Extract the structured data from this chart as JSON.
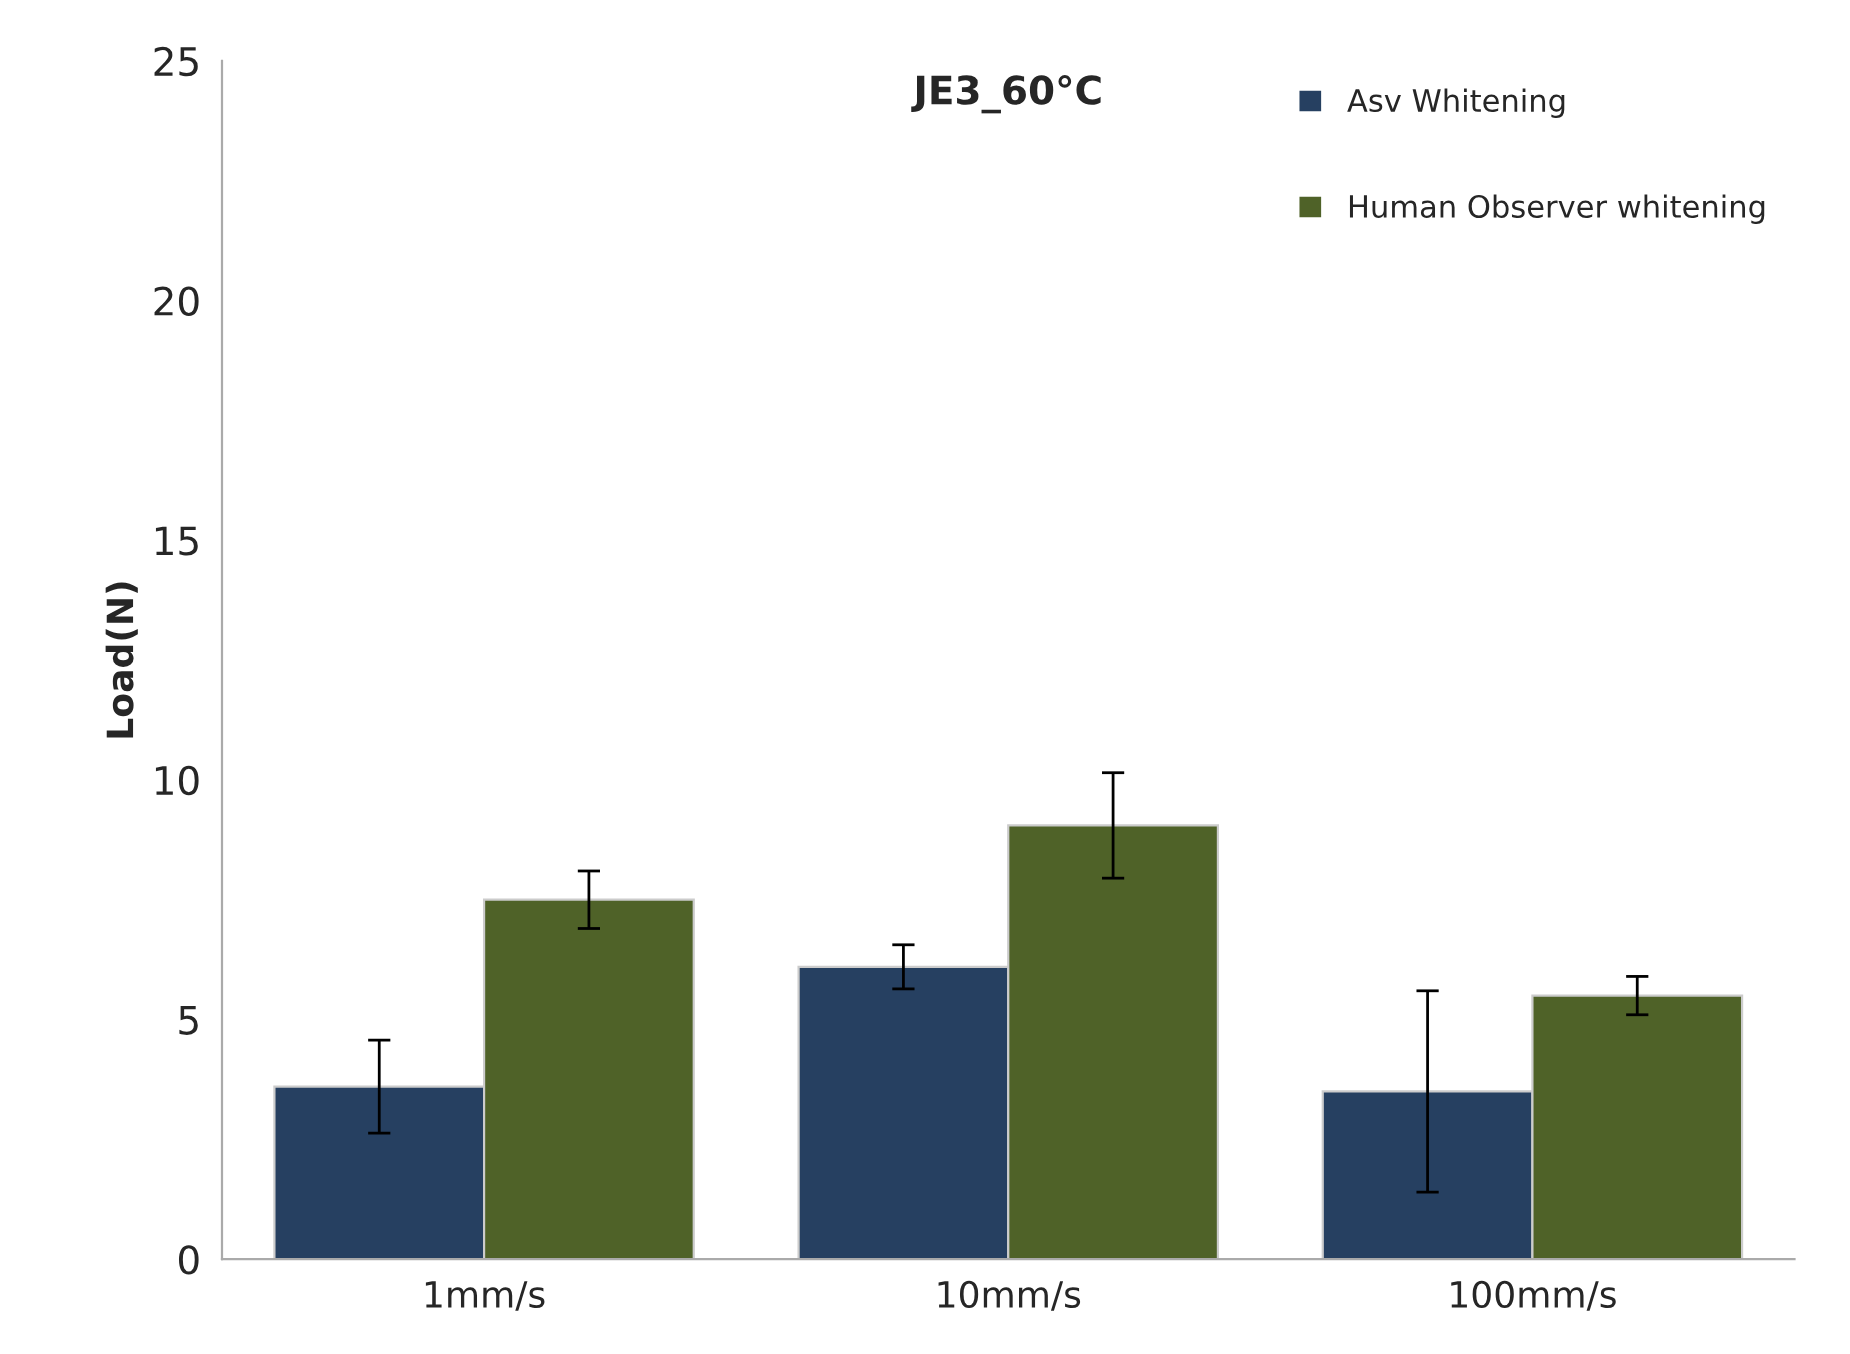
{
  "chart_data": {
    "type": "bar",
    "title": "JE3_60°C",
    "ylabel": "Load(N)",
    "categories": [
      "1mm/s",
      "10mm/s",
      "100mm/s"
    ],
    "series": [
      {
        "name": "Asv Whitening",
        "color": "#264061",
        "values": [
          3.6,
          6.1,
          3.5
        ],
        "errors": [
          0.97,
          0.46,
          2.1
        ]
      },
      {
        "name": "Human Observer whitening",
        "color": "#4f6228",
        "values": [
          7.5,
          9.05,
          5.5
        ],
        "errors": [
          0.6,
          1.1,
          0.4
        ]
      }
    ],
    "ylim": [
      0,
      25
    ],
    "yticks": [
      0,
      5,
      10,
      15,
      20,
      25
    ],
    "grid": false,
    "legend": "top right"
  }
}
